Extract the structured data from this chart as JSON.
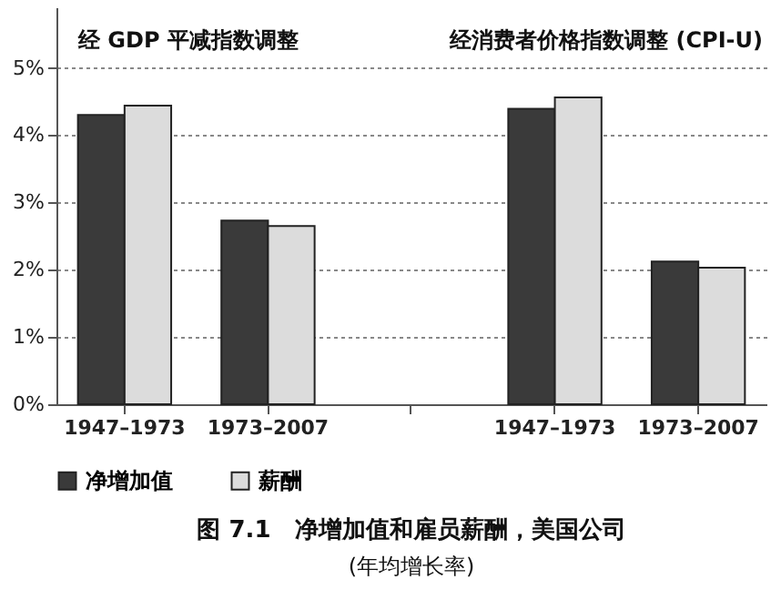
{
  "chart_data": {
    "type": "bar",
    "title": "图 7.1　净增加值和雇员薪酬，美国公司",
    "subtitle": "(年均增长率)",
    "categories": [
      "1947–1973",
      "1973–2007",
      null,
      "1947–1973",
      "1973–2007"
    ],
    "series": [
      {
        "name": "净增加值",
        "color": "#3a3a3a",
        "values": [
          4.3,
          2.73,
          null,
          4.39,
          2.12
        ]
      },
      {
        "name": "薪酬",
        "color": "#dcdcdc",
        "values": [
          4.44,
          2.65,
          null,
          4.56,
          2.03
        ]
      }
    ],
    "annotations": [
      "经 GDP 平减指数调整",
      "经消费者价格指数调整 (CPI-U)"
    ],
    "ylim": [
      0,
      5.9
    ],
    "yticks": [
      {
        "value": 0,
        "label": "0%"
      },
      {
        "value": 1,
        "label": "1%"
      },
      {
        "value": 2,
        "label": "2%"
      },
      {
        "value": 3,
        "label": "3%"
      },
      {
        "value": 4,
        "label": "4%"
      },
      {
        "value": 5,
        "label": "5%"
      }
    ],
    "grid": "y",
    "legend": "bottom"
  }
}
